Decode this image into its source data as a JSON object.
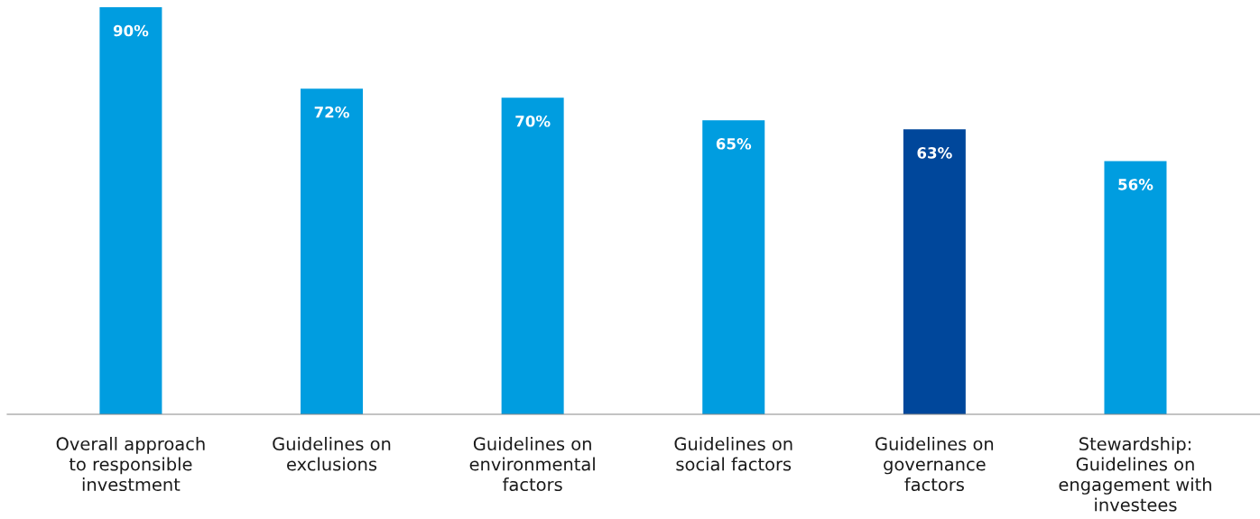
{
  "chart_data": {
    "type": "bar",
    "categories": [
      "Overall approach\nto responsible\ninvestment",
      "Guidelines on\nexclusions",
      "Guidelines on\nenvironmental\nfactors",
      "Guidelines on\nsocial factors",
      "Guidelines on\ngovernance\nfactors",
      "Stewardship:\nGuidelines on\nengagement with\ninvestees"
    ],
    "values": [
      90,
      72,
      70,
      65,
      63,
      56
    ],
    "colors": [
      "#009de0",
      "#009de0",
      "#009de0",
      "#009de0",
      "#00479b",
      "#009de0"
    ],
    "value_labels": [
      "90%",
      "72%",
      "70%",
      "65%",
      "63%",
      "56%"
    ],
    "grid": false,
    "legend": false
  }
}
